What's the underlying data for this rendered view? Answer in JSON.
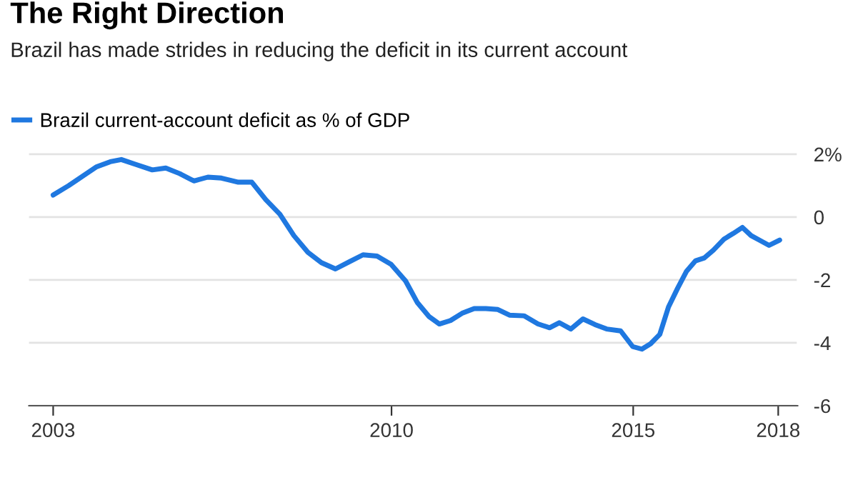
{
  "chart_data": {
    "type": "line",
    "title": "The Right Direction",
    "subtitle": "Brazil has made strides in reducing the deficit in its current account",
    "series": [
      {
        "name": "Brazil current-account deficit as % of GDP",
        "color": "#1f78e0",
        "x": [
          2003.0,
          2003.32,
          2003.61,
          2003.9,
          2004.18,
          2004.41,
          2004.7,
          2005.05,
          2005.33,
          2005.62,
          2005.91,
          2006.2,
          2006.48,
          2006.83,
          2007.11,
          2007.4,
          2007.69,
          2007.98,
          2008.27,
          2008.55,
          2008.84,
          2009.13,
          2009.41,
          2009.7,
          2009.99,
          2010.29,
          2010.53,
          2010.78,
          2010.99,
          2011.22,
          2011.46,
          2011.71,
          2011.95,
          2012.2,
          2012.44,
          2012.74,
          2013.03,
          2013.27,
          2013.47,
          2013.71,
          2013.96,
          2014.21,
          2014.45,
          2014.74,
          2014.99,
          2015.18,
          2015.36,
          2015.55,
          2015.73,
          2015.92,
          2016.1,
          2016.29,
          2016.47,
          2016.66,
          2016.88,
          2017.07,
          2017.26,
          2017.44,
          2017.62,
          2017.81,
          2018.03
        ],
        "values": [
          0.7,
          1.0,
          1.3,
          1.6,
          1.76,
          1.83,
          1.68,
          1.5,
          1.56,
          1.38,
          1.15,
          1.27,
          1.24,
          1.11,
          1.11,
          0.55,
          0.09,
          -0.59,
          -1.12,
          -1.45,
          -1.65,
          -1.42,
          -1.2,
          -1.24,
          -1.5,
          -2.03,
          -2.71,
          -3.17,
          -3.4,
          -3.29,
          -3.06,
          -2.91,
          -2.91,
          -2.94,
          -3.12,
          -3.14,
          -3.4,
          -3.52,
          -3.36,
          -3.56,
          -3.24,
          -3.42,
          -3.56,
          -3.62,
          -4.12,
          -4.2,
          -4.03,
          -3.73,
          -2.86,
          -2.26,
          -1.73,
          -1.39,
          -1.3,
          -1.05,
          -0.7,
          -0.52,
          -0.33,
          -0.59,
          -0.74,
          -0.9,
          -0.73
        ]
      }
    ],
    "xlim": [
      2002.5,
      2018.4
    ],
    "xticks": [
      2003,
      2010,
      2015,
      2018
    ],
    "ylim": [
      -6,
      2.4
    ],
    "yticks": [
      {
        "value": 2,
        "label": "2%"
      },
      0,
      -2,
      -4,
      -6
    ],
    "grid": "y",
    "legend": "top left",
    "line_style": "solid",
    "marker": "none"
  }
}
